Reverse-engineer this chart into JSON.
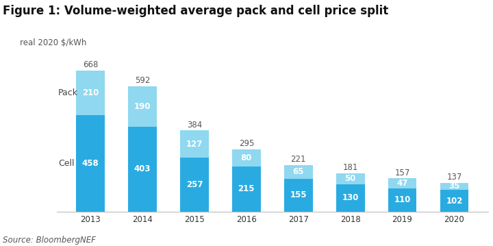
{
  "title": "Figure 1: Volume-weighted average pack and cell price split",
  "subtitle": "real 2020 $/kWh",
  "source": "Source: BloombergNEF",
  "years": [
    "2013",
    "2014",
    "2015",
    "2016",
    "2017",
    "2018",
    "2019",
    "2020"
  ],
  "cell_values": [
    458,
    403,
    257,
    215,
    155,
    130,
    110,
    102
  ],
  "pack_values": [
    210,
    190,
    127,
    80,
    65,
    50,
    47,
    35
  ],
  "totals": [
    668,
    592,
    384,
    295,
    221,
    181,
    157,
    137
  ],
  "cell_color": "#29abe2",
  "pack_color": "#8fd8f0",
  "background_color": "#ffffff",
  "label_cell": "Cell",
  "label_pack": "Pack",
  "bar_width": 0.55,
  "title_fontsize": 12,
  "subtitle_fontsize": 8.5,
  "label_fontsize": 8.5,
  "source_fontsize": 8.5,
  "total_fontsize": 8.5,
  "ylim": [
    0,
    740
  ],
  "text_color_dark": "#555555",
  "text_color_label": "#444444"
}
